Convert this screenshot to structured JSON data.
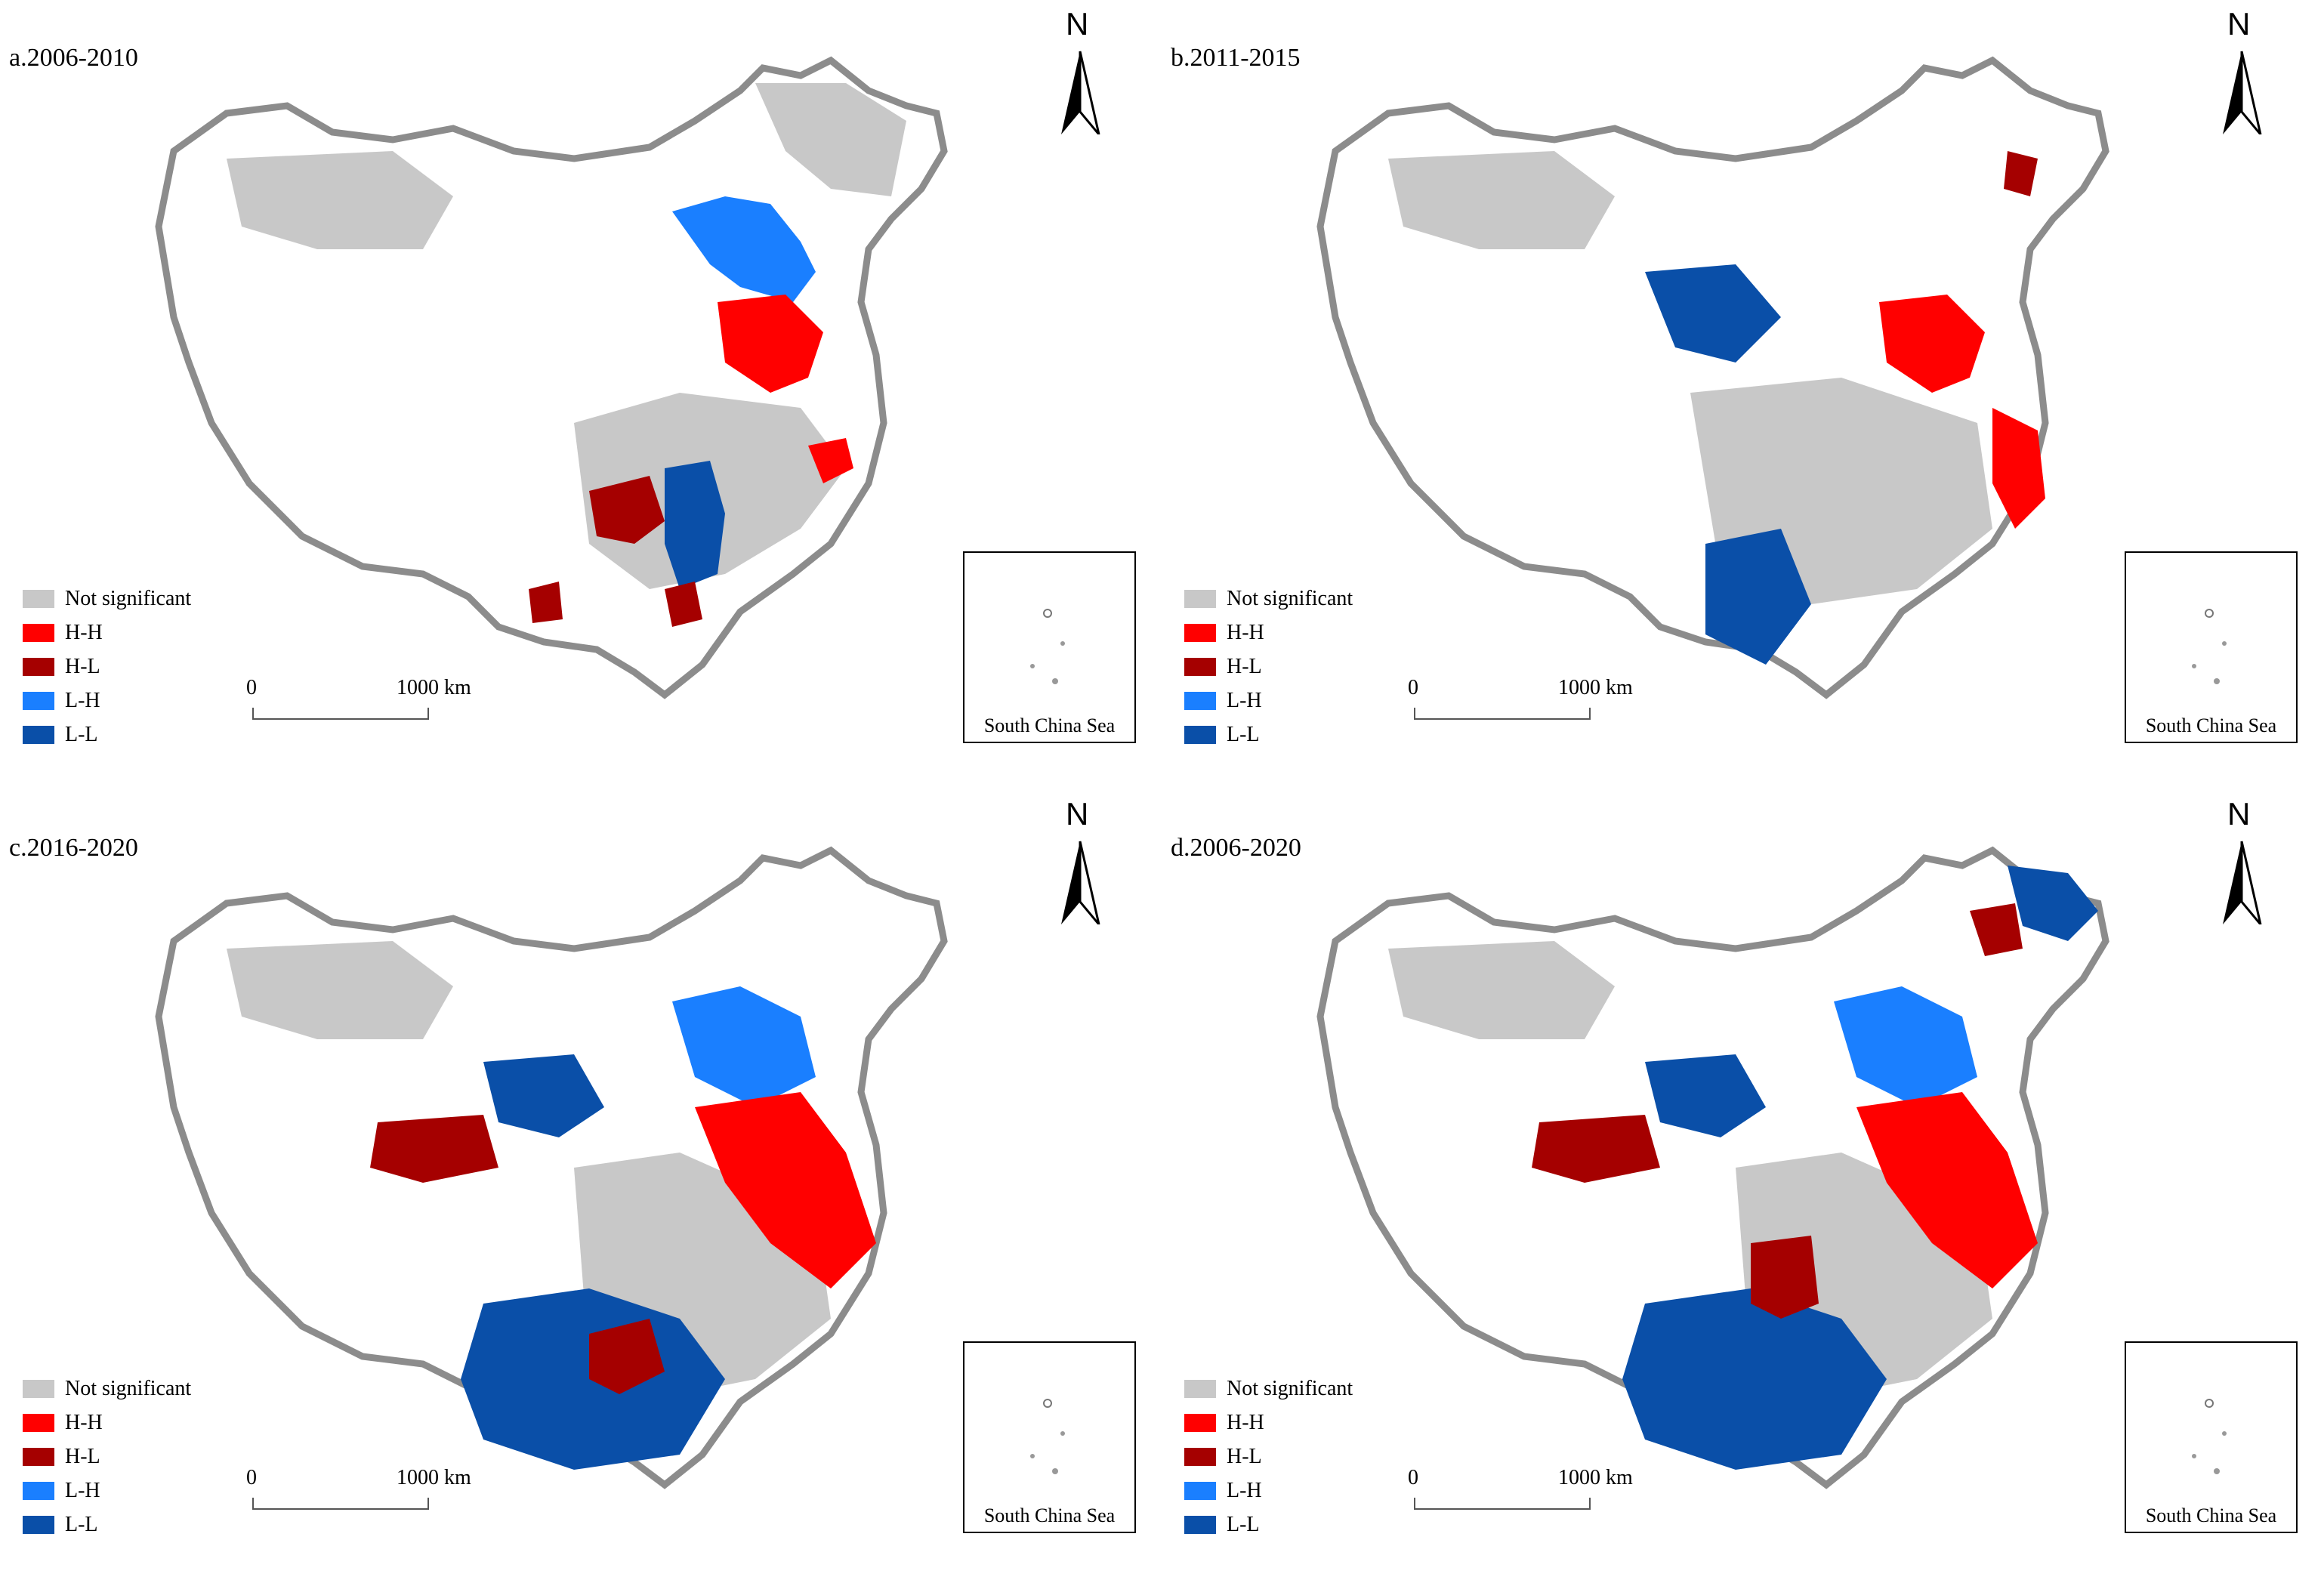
{
  "colors": {
    "not_significant": "#c8c8c8",
    "hh": "#ff0000",
    "hl": "#a50000",
    "lh": "#1a7fff",
    "ll": "#0a4fa8",
    "boundary": "#8c8c8c",
    "land": "#ffffff"
  },
  "legend": {
    "items": [
      {
        "label": "Not significant",
        "key": "not_significant"
      },
      {
        "label": "H-H",
        "key": "hh"
      },
      {
        "label": "H-L",
        "key": "hl"
      },
      {
        "label": "L-H",
        "key": "lh"
      },
      {
        "label": "L-L",
        "key": "ll"
      }
    ]
  },
  "north_arrow": {
    "label": "N"
  },
  "scale": {
    "start": "0",
    "end": "1000 km"
  },
  "inset": {
    "label": "South China Sea"
  },
  "panels": [
    {
      "id": "a",
      "title": "a.2006-2010"
    },
    {
      "id": "b",
      "title": "b.2011-2015"
    },
    {
      "id": "c",
      "title": "c.2016-2020"
    },
    {
      "id": "d",
      "title": "d.2006-2020"
    }
  ]
}
